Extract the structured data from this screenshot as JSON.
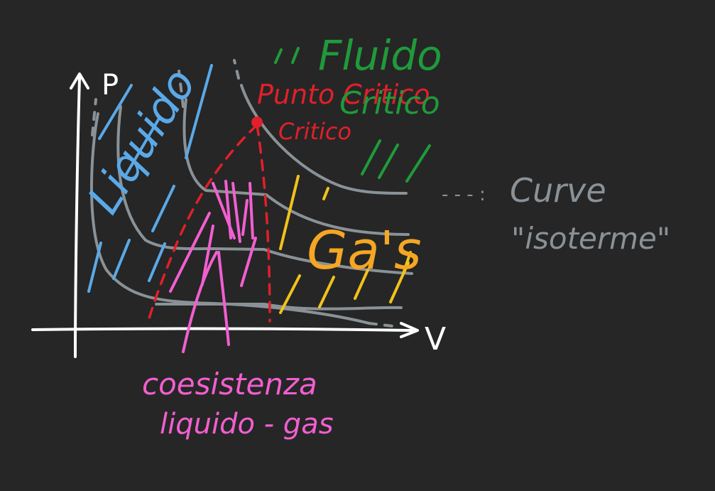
{
  "colors": {
    "background": "#262626",
    "axes": "#ffffff",
    "isotherm": "#8a9297",
    "liquid": "#5aa9e8",
    "fluid": "#1f9a3a",
    "critical": "#e0202a",
    "gas": "#f5a623",
    "gas_hatch": "#f2c21b",
    "coexistence": "#f25fd0"
  },
  "axes": {
    "y_label": "P",
    "x_label": "V"
  },
  "labels": {
    "fluid": "Fluido",
    "critical_point_title": "Punto Critico",
    "critical_point_marker": "Critico",
    "liquid": "Liquido",
    "gas": "Ga's",
    "coexistence_line1": "coesistenza",
    "coexistence_line2": "liquido - gas",
    "legend_dashes": "- - - :",
    "legend_line1": "Curve",
    "legend_line2": "\"isoterme\""
  }
}
